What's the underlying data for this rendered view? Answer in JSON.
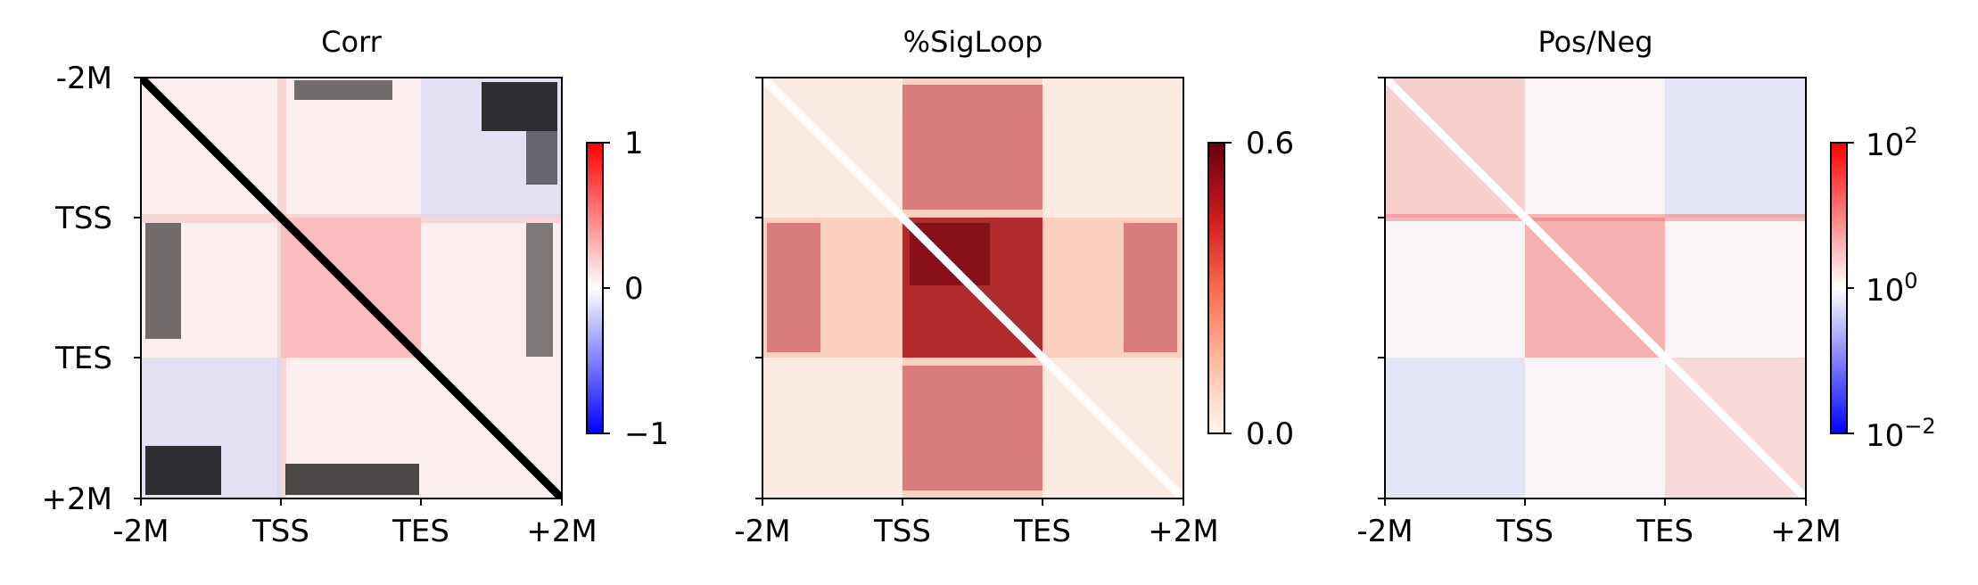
{
  "chart_data": [
    {
      "type": "heatmap",
      "title": "Corr",
      "x_tick_labels": [
        "-2M",
        "TSS",
        "TES",
        "+2M"
      ],
      "y_tick_labels": [
        "-2M",
        "TSS",
        "TES",
        "+2M"
      ],
      "y_tick_labels_visible": true,
      "colorbar": {
        "colormap": "bwr",
        "scale": "linear",
        "range": [
          -1,
          1
        ],
        "ticks": [
          -1,
          0,
          1
        ],
        "tick_labels": [
          "−1",
          "0",
          "1"
        ]
      },
      "diagonal_color": "#000000",
      "missing_color": "#000000"
    },
    {
      "type": "heatmap",
      "title": "%SigLoop",
      "x_tick_labels": [
        "-2M",
        "TSS",
        "TES",
        "+2M"
      ],
      "y_tick_labels": [
        "-2M",
        "TSS",
        "TES",
        "+2M"
      ],
      "y_tick_labels_visible": false,
      "colorbar": {
        "colormap": "Reds",
        "scale": "linear",
        "range": [
          0.0,
          0.6
        ],
        "ticks": [
          0.0,
          0.6
        ],
        "tick_labels": [
          "0.0",
          "0.6"
        ]
      },
      "diagonal_color": "#ffffff"
    },
    {
      "type": "heatmap",
      "title": "Pos/Neg",
      "x_tick_labels": [
        "-2M",
        "TSS",
        "TES",
        "+2M"
      ],
      "y_tick_labels": [
        "-2M",
        "TSS",
        "TES",
        "+2M"
      ],
      "y_tick_labels_visible": false,
      "colorbar": {
        "colormap": "bwr",
        "scale": "log",
        "range": [
          0.01,
          100
        ],
        "ticks": [
          0.01,
          1,
          100
        ],
        "tick_labels": [
          {
            "base": "10",
            "exp": "−2"
          },
          {
            "base": "10",
            "exp": "0"
          },
          {
            "base": "10",
            "exp": "2"
          }
        ]
      },
      "diagonal_color": "#ffffff"
    }
  ]
}
